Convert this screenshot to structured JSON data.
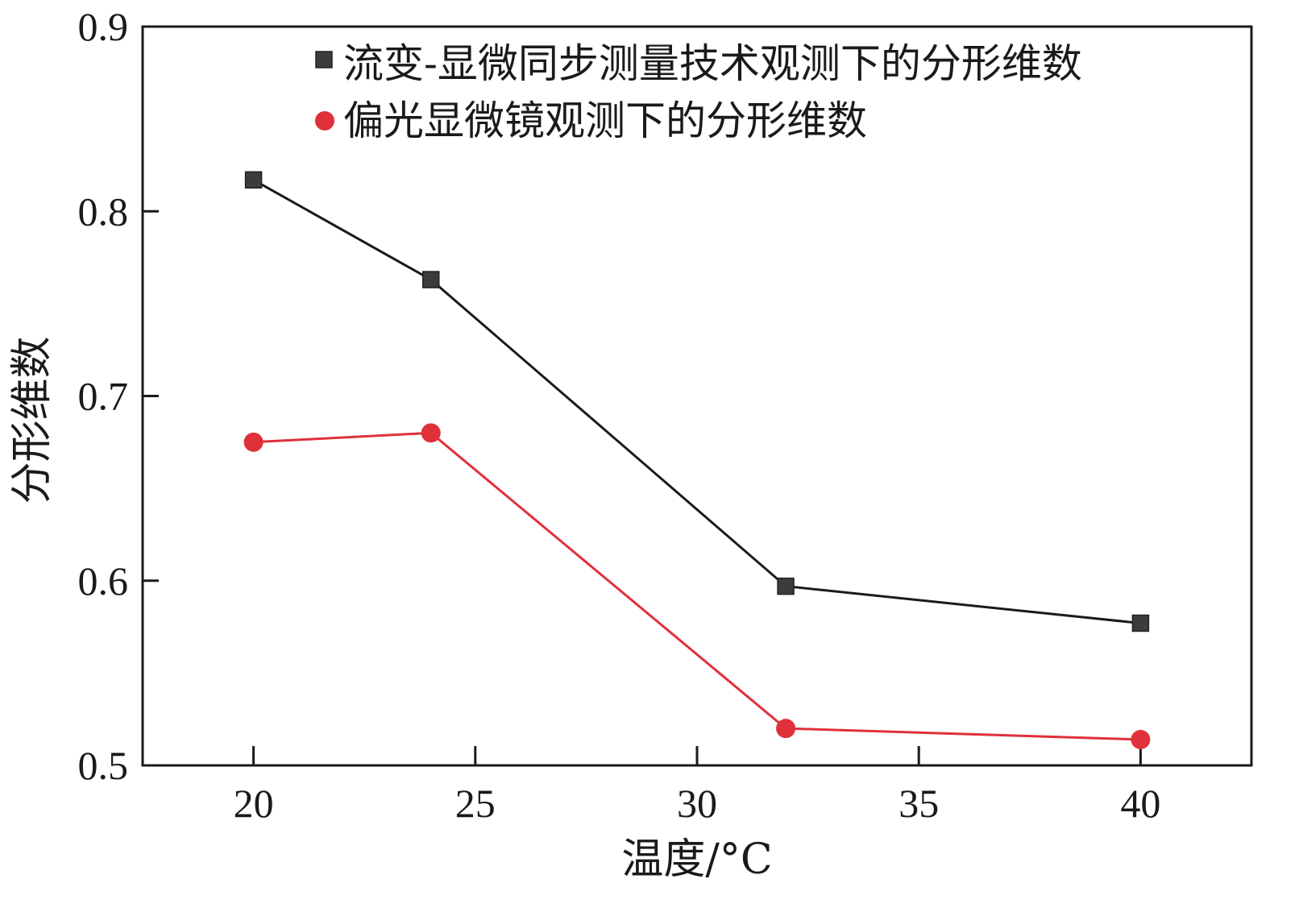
{
  "chart_data": {
    "type": "line",
    "xlabel": "温度/°C",
    "ylabel": "分形维数",
    "xlim": [
      17.5,
      42.5
    ],
    "ylim": [
      0.5,
      0.9
    ],
    "xticks": [
      20,
      25,
      30,
      35,
      40
    ],
    "xtick_labels": [
      "20",
      "25",
      "30",
      "35",
      "40"
    ],
    "yticks": [
      0.5,
      0.6,
      0.7,
      0.8,
      0.9
    ],
    "ytick_labels": [
      "0.5",
      "0.6",
      "0.7",
      "0.8",
      "0.9"
    ],
    "grid": false,
    "legend_position": "top-right",
    "series": [
      {
        "name": "流变-显微同步测量技术观测下的分形维数",
        "marker": "square",
        "color": "#1a1a1a",
        "marker_color": "#3c3c3c",
        "x": [
          20,
          24,
          32,
          40
        ],
        "y": [
          0.817,
          0.763,
          0.597,
          0.577
        ]
      },
      {
        "name": "偏光显微镜观测下的分形维数",
        "marker": "circle",
        "color": "#e0303a",
        "marker_color": "#e0303a",
        "x": [
          20,
          24,
          32,
          40
        ],
        "y": [
          0.675,
          0.68,
          0.52,
          0.514
        ]
      }
    ]
  }
}
